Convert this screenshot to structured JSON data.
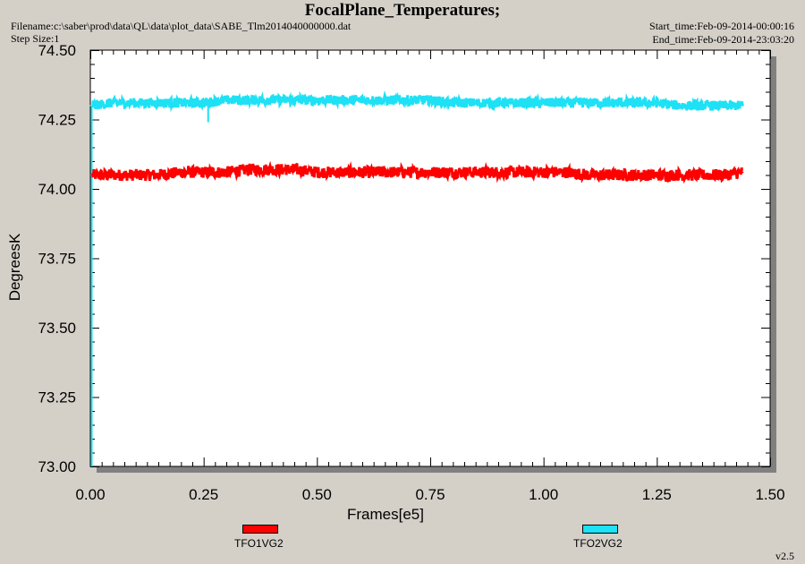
{
  "header": {
    "title": "FocalPlane_Temperatures;",
    "filename": "Filename:c:\\saber\\prod\\data\\QL\\data\\plot_data\\SABE_Tlm2014040000000.dat",
    "step_size": "Step Size:1",
    "start_time": "Start_time:Feb-09-2014-00:00:16",
    "end_time": "End_time:Feb-09-2014-23:03:20"
  },
  "footer": {
    "version": "v2.5"
  },
  "colors": {
    "series1": "#ff0000",
    "series2": "#1ee1f5",
    "plot_bg": "#ffffff",
    "window_bg": "#d4d0c8"
  },
  "chart_data": {
    "type": "line",
    "title": "FocalPlane_Temperatures;",
    "xlabel": "Frames[e5]",
    "ylabel": "DegreesK",
    "xlim": [
      0,
      1.5
    ],
    "ylim": [
      73.0,
      74.5
    ],
    "x_ticks": [
      "0.00",
      "0.25",
      "0.50",
      "0.75",
      "1.00",
      "1.25",
      "1.50"
    ],
    "y_ticks": [
      "73.00",
      "73.25",
      "73.50",
      "73.75",
      "74.00",
      "74.25",
      "74.50"
    ],
    "grid": false,
    "legend_position": "bottom",
    "series": [
      {
        "name": "TFO1VG2",
        "color": "#ff0000",
        "x": [
          0.0,
          0.05,
          0.1,
          0.15,
          0.2,
          0.25,
          0.3,
          0.35,
          0.4,
          0.45,
          0.5,
          0.55,
          0.6,
          0.65,
          0.7,
          0.75,
          0.8,
          0.85,
          0.9,
          0.95,
          1.0,
          1.05,
          1.1,
          1.15,
          1.2,
          1.25,
          1.3,
          1.35,
          1.4,
          1.44
        ],
        "y": [
          74.05,
          74.05,
          74.05,
          74.05,
          74.06,
          74.06,
          74.06,
          74.07,
          74.07,
          74.07,
          74.06,
          74.06,
          74.06,
          74.06,
          74.06,
          74.06,
          74.06,
          74.06,
          74.06,
          74.06,
          74.06,
          74.06,
          74.05,
          74.05,
          74.05,
          74.05,
          74.05,
          74.05,
          74.05,
          74.06
        ],
        "noise_amplitude": 0.03
      },
      {
        "name": "TFO2VG2",
        "color": "#1ee1f5",
        "x": [
          0.0,
          0.05,
          0.1,
          0.15,
          0.2,
          0.25,
          0.3,
          0.35,
          0.4,
          0.45,
          0.5,
          0.55,
          0.6,
          0.65,
          0.7,
          0.75,
          0.8,
          0.85,
          0.9,
          0.95,
          1.0,
          1.05,
          1.1,
          1.15,
          1.2,
          1.25,
          1.3,
          1.35,
          1.4,
          1.44
        ],
        "y": [
          74.3,
          74.31,
          74.31,
          74.31,
          74.31,
          74.31,
          74.32,
          74.32,
          74.32,
          74.32,
          74.32,
          74.32,
          74.32,
          74.32,
          74.32,
          74.32,
          74.31,
          74.31,
          74.31,
          74.31,
          74.31,
          74.31,
          74.31,
          74.31,
          74.31,
          74.31,
          74.3,
          74.3,
          74.3,
          74.3
        ],
        "noise_amplitude": 0.025
      }
    ]
  }
}
